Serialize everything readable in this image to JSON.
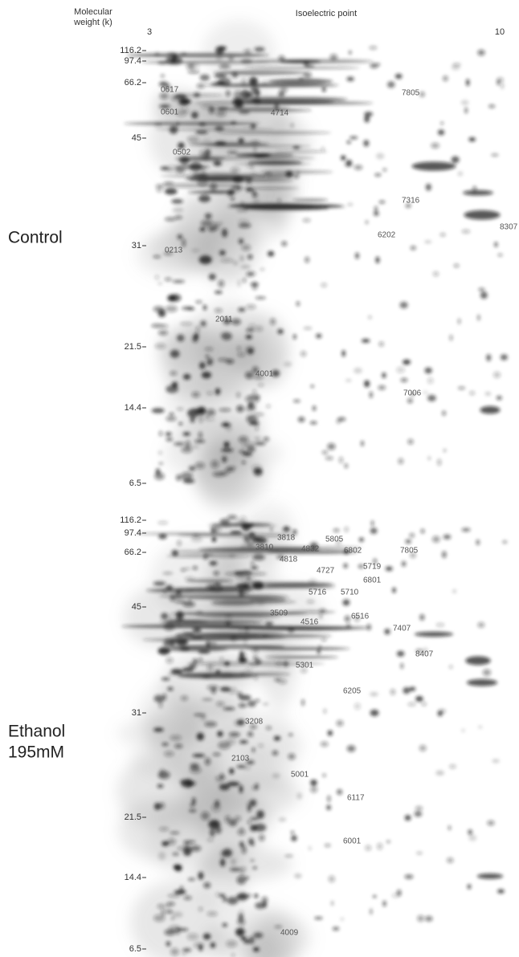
{
  "header": {
    "mw_axis_label": [
      "Molecular",
      "weight (k)"
    ],
    "pi_axis_label": "Isoelectric point",
    "pi_low": 3,
    "pi_high": 10
  },
  "panels": [
    {
      "label": [
        "Control"
      ],
      "mw_ticks": [
        116.2,
        97.4,
        66.2,
        45,
        31,
        21.5,
        14.4,
        6.5
      ],
      "spots": [
        "0617",
        "0601",
        "4714",
        "7805",
        "0502",
        "7316",
        "6202",
        "8307",
        "0213",
        "2011",
        "4001",
        "7006"
      ]
    },
    {
      "label": [
        "Ethanol",
        "195mM"
      ],
      "mw_ticks": [
        116.2,
        97.4,
        66.2,
        45,
        31,
        21.5,
        14.4,
        6.5
      ],
      "spots": [
        "3818",
        "5805",
        "3810",
        "4832",
        "6802",
        "7805",
        "4818",
        "5719",
        "4727",
        "6801",
        "5716",
        "5710",
        "3509",
        "4516",
        "6516",
        "7407",
        "8407",
        "5301",
        "6205",
        "3208",
        "2103",
        "5001",
        "6117",
        "6001",
        "4009"
      ]
    }
  ]
}
